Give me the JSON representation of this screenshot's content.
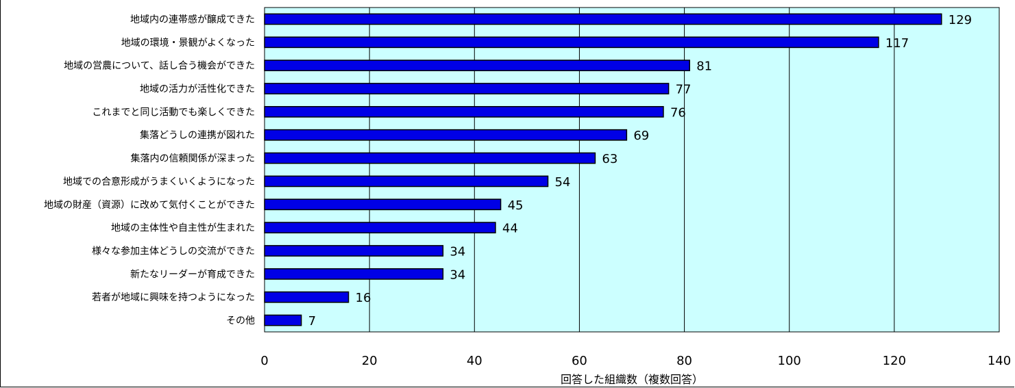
{
  "chart_data": {
    "type": "bar",
    "orientation": "horizontal",
    "categories": [
      "地域内の連帯感が醸成できた",
      "地域の環境・景観がよくなった",
      "地域の営農について、話し合う機会ができた",
      "地域の活力が活性化できた",
      "これまでと同じ活動でも楽しくできた",
      "集落どうしの連携が図れた",
      "集落内の信頼関係が深まった",
      "地域での合意形成がうまくいくようになった",
      "地域の財産（資源）に改めて気付くことができた",
      "地域の主体性や自主性が生まれた",
      "様々な参加主体どうしの交流ができた",
      "新たなリーダーが育成できた",
      "若者が地域に興味を持つようになった",
      "その他"
    ],
    "values": [
      129,
      117,
      81,
      77,
      76,
      69,
      63,
      54,
      45,
      44,
      34,
      34,
      16,
      7
    ],
    "value_labels": [
      "129",
      "117",
      "81",
      "77",
      "76",
      "69",
      "63",
      "54",
      "45",
      "44",
      "34",
      "34",
      "16",
      "7"
    ],
    "xlabel": "回答した組織数（複数回答）",
    "xlim": [
      0,
      140
    ],
    "xticks": [
      0,
      20,
      40,
      60,
      80,
      100,
      120,
      140
    ],
    "xtick_labels": [
      "0",
      "20",
      "40",
      "60",
      "80",
      "100",
      "120",
      "140"
    ],
    "grid": "vertical",
    "colors": {
      "bar": "#0000e6",
      "bar_edge": "#000000",
      "plot_background": "#ccffff"
    }
  }
}
